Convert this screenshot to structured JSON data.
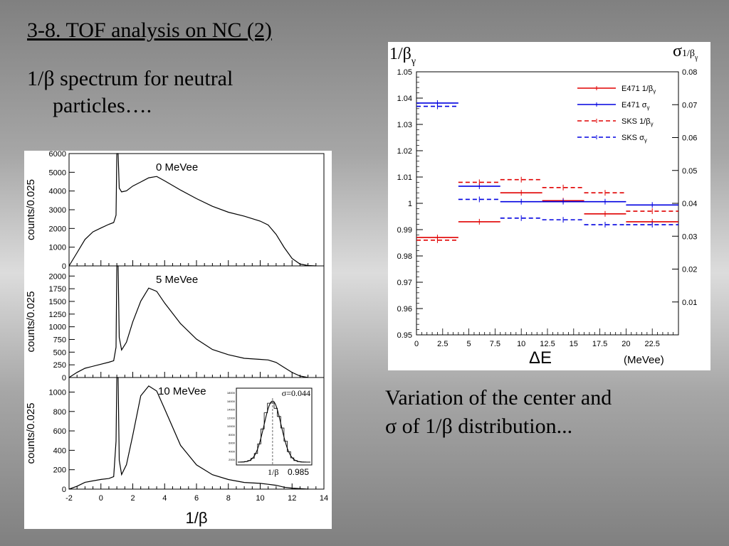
{
  "slide": {
    "title": "3-8. TOF analysis on NC (2)",
    "bullet_line1": "1/β spectrum for neutral",
    "bullet_line2": "particles….",
    "caption_line1": "Variation of the center and",
    "caption_line2": "σ of 1/β  distribution..."
  },
  "chart_data": [
    {
      "type": "line",
      "id": "hist-0",
      "annotation": "0 MeVee",
      "ylabel": "counts/0.025",
      "xlim": [
        -2,
        14
      ],
      "ylim": [
        0,
        6000
      ],
      "yticks": [
        0,
        1000,
        2000,
        3000,
        4000,
        5000,
        6000
      ],
      "x": [
        -2,
        -1.5,
        -1,
        -0.5,
        0,
        0.5,
        0.8,
        0.95,
        1.0,
        1.08,
        1.15,
        1.3,
        1.6,
        2.0,
        2.5,
        3.0,
        3.5,
        4.0,
        5,
        6,
        7,
        8,
        9,
        10,
        10.5,
        11,
        11.5,
        12,
        12.5,
        13,
        13.5
      ],
      "values": [
        0,
        700,
        1400,
        1800,
        2000,
        2200,
        2300,
        2700,
        6000,
        6000,
        4200,
        4000,
        4050,
        4300,
        4500,
        4700,
        4750,
        4500,
        4000,
        3550,
        3150,
        2850,
        2650,
        2400,
        2200,
        1700,
        1000,
        400,
        100,
        20,
        0
      ]
    },
    {
      "type": "line",
      "id": "hist-5",
      "annotation": "5 MeVee",
      "ylabel": "counts/0.025",
      "xlim": [
        -2,
        14
      ],
      "ylim": [
        0,
        2200
      ],
      "yticks": [
        0,
        250,
        500,
        750,
        1000,
        1250,
        1500,
        1750,
        2000
      ],
      "x": [
        -2,
        -1.5,
        -1,
        0,
        0.5,
        0.8,
        0.95,
        1.0,
        1.08,
        1.15,
        1.3,
        1.6,
        2.0,
        2.5,
        3.0,
        3.5,
        4.0,
        5,
        6,
        7,
        8,
        9,
        10,
        10.5,
        11,
        11.5,
        12,
        12.5,
        13
      ],
      "values": [
        0,
        100,
        180,
        260,
        300,
        330,
        600,
        2200,
        2200,
        800,
        550,
        700,
        1100,
        1500,
        1750,
        1680,
        1450,
        1050,
        750,
        550,
        450,
        380,
        360,
        350,
        300,
        200,
        100,
        30,
        0
      ]
    },
    {
      "type": "line",
      "id": "hist-10",
      "annotation": "10 MeVee",
      "ylabel": "counts/0.025",
      "xlabel": "1/β",
      "xlim": [
        -2,
        14
      ],
      "ylim": [
        0,
        1150
      ],
      "yticks": [
        0,
        200,
        400,
        600,
        800,
        1000
      ],
      "xticks": [
        -2,
        0,
        2,
        4,
        6,
        8,
        10,
        12,
        14
      ],
      "x": [
        -2,
        -1.5,
        -1,
        0,
        0.5,
        0.8,
        0.95,
        1.0,
        1.08,
        1.15,
        1.3,
        1.6,
        2.0,
        2.5,
        3.0,
        3.5,
        4.0,
        5,
        6,
        7,
        8,
        9,
        10,
        10.5,
        11,
        11.5,
        12,
        13
      ],
      "values": [
        0,
        30,
        70,
        100,
        110,
        130,
        500,
        1150,
        1150,
        300,
        150,
        250,
        550,
        950,
        1050,
        1000,
        820,
        450,
        250,
        150,
        100,
        70,
        60,
        50,
        40,
        20,
        10,
        0
      ],
      "inset": {
        "sigma_label": "σ=0.044",
        "x_label": "1/β",
        "center_label": "0.985",
        "yticks": [
          "18000",
          "16000",
          "14000",
          "12000",
          "10000",
          "8000",
          "6000",
          "4000",
          "2000"
        ]
      }
    },
    {
      "type": "line",
      "id": "center-sigma",
      "ylabel_left": "1/β",
      "ylabel_left_sub": "γ",
      "ylabel_right": "σ",
      "ylabel_right_sub": "1/β",
      "ylabel_right_subsub": "γ",
      "xlabel": "ΔE",
      "xlabel_unit": "(MeVee)",
      "xlim": [
        0,
        25
      ],
      "ylim_left": [
        0.95,
        1.05
      ],
      "ylim_right": [
        0.0,
        0.08
      ],
      "xticks": [
        0,
        2.5,
        5,
        7.5,
        10,
        12.5,
        15,
        17.5,
        20,
        22.5
      ],
      "yticks_left": [
        0.95,
        0.96,
        0.97,
        0.98,
        0.99,
        1,
        1.01,
        1.02,
        1.03,
        1.04,
        1.05
      ],
      "yticks_right": [
        0.01,
        0.02,
        0.03,
        0.04,
        0.05,
        0.06,
        0.07,
        0.08
      ],
      "bin_edges": [
        0,
        4,
        8,
        12,
        16,
        20,
        25
      ],
      "series": [
        {
          "name": "E471 1/β",
          "sub": "γ",
          "color": "#e00000",
          "dash": false,
          "axis": "left",
          "values": [
            0.987,
            0.993,
            1.004,
            1.001,
            0.996,
            0.993
          ]
        },
        {
          "name": "E471  σ",
          "sub": "γ",
          "color": "#0000e0",
          "dash": false,
          "axis": "right",
          "values": [
            0.0705,
            0.0452,
            0.0405,
            0.0405,
            0.0405,
            0.0395
          ]
        },
        {
          "name": "SKS 1/β",
          "sub": "γ",
          "color": "#e00000",
          "dash": true,
          "axis": "left",
          "values": [
            0.986,
            1.008,
            1.009,
            1.006,
            1.004,
            0.997
          ]
        },
        {
          "name": "SKS  σ",
          "sub": "γ",
          "color": "#0000e0",
          "dash": true,
          "axis": "right",
          "values": [
            0.0695,
            0.0412,
            0.0355,
            0.035,
            0.0335,
            0.0335
          ]
        }
      ]
    }
  ]
}
